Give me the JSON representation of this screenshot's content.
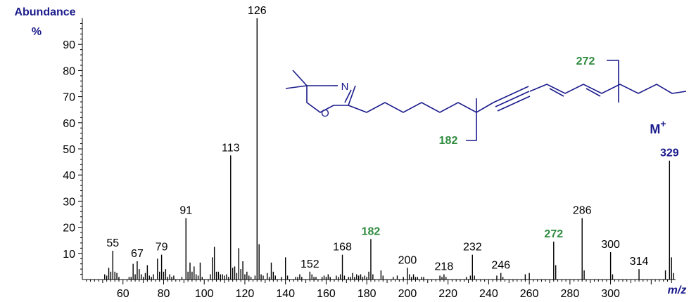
{
  "chart_data": {
    "type": "bar",
    "ylabel": "Abundance",
    "yunit": "%",
    "xlabel": "m/z",
    "xlim": [
      40,
      332
    ],
    "ylim": [
      0,
      100
    ],
    "x_ticks": [
      60,
      80,
      100,
      120,
      140,
      160,
      180,
      200,
      220,
      240,
      260,
      280,
      300
    ],
    "y_ticks": [
      10,
      20,
      30,
      40,
      50,
      60,
      70,
      80,
      90
    ],
    "peaks": [
      {
        "x": 51,
        "y": 2
      },
      {
        "x": 52,
        "y": 1.5
      },
      {
        "x": 53,
        "y": 4.5
      },
      {
        "x": 54,
        "y": 3
      },
      {
        "x": 55,
        "y": 11
      },
      {
        "x": 56,
        "y": 3
      },
      {
        "x": 57,
        "y": 2.5
      },
      {
        "x": 58,
        "y": 1
      },
      {
        "x": 63,
        "y": 1
      },
      {
        "x": 64,
        "y": 1
      },
      {
        "x": 65,
        "y": 6
      },
      {
        "x": 66,
        "y": 2
      },
      {
        "x": 67,
        "y": 7
      },
      {
        "x": 68,
        "y": 4
      },
      {
        "x": 69,
        "y": 2
      },
      {
        "x": 70,
        "y": 1
      },
      {
        "x": 71,
        "y": 2.5
      },
      {
        "x": 72,
        "y": 5.5
      },
      {
        "x": 73,
        "y": 1.5
      },
      {
        "x": 74,
        "y": 1
      },
      {
        "x": 75,
        "y": 2
      },
      {
        "x": 77,
        "y": 8
      },
      {
        "x": 78,
        "y": 3
      },
      {
        "x": 79,
        "y": 9.5
      },
      {
        "x": 80,
        "y": 3
      },
      {
        "x": 81,
        "y": 4
      },
      {
        "x": 82,
        "y": 1
      },
      {
        "x": 83,
        "y": 2
      },
      {
        "x": 84,
        "y": 1
      },
      {
        "x": 85,
        "y": 1.5
      },
      {
        "x": 89,
        "y": 1
      },
      {
        "x": 91,
        "y": 23.5
      },
      {
        "x": 92,
        "y": 3
      },
      {
        "x": 93,
        "y": 6.5
      },
      {
        "x": 94,
        "y": 3
      },
      {
        "x": 95,
        "y": 5
      },
      {
        "x": 96,
        "y": 2
      },
      {
        "x": 97,
        "y": 1.5
      },
      {
        "x": 98,
        "y": 6.5
      },
      {
        "x": 99,
        "y": 1
      },
      {
        "x": 103,
        "y": 2
      },
      {
        "x": 104,
        "y": 8.5
      },
      {
        "x": 105,
        "y": 12.5
      },
      {
        "x": 106,
        "y": 3
      },
      {
        "x": 107,
        "y": 3
      },
      {
        "x": 108,
        "y": 2
      },
      {
        "x": 109,
        "y": 2
      },
      {
        "x": 110,
        "y": 1.5
      },
      {
        "x": 111,
        "y": 2
      },
      {
        "x": 112,
        "y": 1
      },
      {
        "x": 113,
        "y": 47.5
      },
      {
        "x": 114,
        "y": 4.5
      },
      {
        "x": 115,
        "y": 5
      },
      {
        "x": 116,
        "y": 2.5
      },
      {
        "x": 117,
        "y": 12
      },
      {
        "x": 118,
        "y": 4
      },
      {
        "x": 119,
        "y": 7
      },
      {
        "x": 120,
        "y": 2
      },
      {
        "x": 121,
        "y": 3
      },
      {
        "x": 122,
        "y": 1.5
      },
      {
        "x": 123,
        "y": 1
      },
      {
        "x": 125,
        "y": 1.5
      },
      {
        "x": 126,
        "y": 100
      },
      {
        "x": 127,
        "y": 13.5
      },
      {
        "x": 128,
        "y": 2
      },
      {
        "x": 129,
        "y": 1.5
      },
      {
        "x": 131,
        "y": 2.5
      },
      {
        "x": 132,
        "y": 1
      },
      {
        "x": 133,
        "y": 6.5
      },
      {
        "x": 134,
        "y": 3
      },
      {
        "x": 135,
        "y": 1.5
      },
      {
        "x": 138,
        "y": 1
      },
      {
        "x": 140,
        "y": 8.5
      },
      {
        "x": 141,
        "y": 1.5
      },
      {
        "x": 145,
        "y": 1
      },
      {
        "x": 146,
        "y": 1
      },
      {
        "x": 147,
        "y": 2
      },
      {
        "x": 148,
        "y": 1
      },
      {
        "x": 152,
        "y": 3
      },
      {
        "x": 153,
        "y": 2
      },
      {
        "x": 154,
        "y": 1
      },
      {
        "x": 155,
        "y": 1
      },
      {
        "x": 158,
        "y": 1
      },
      {
        "x": 159,
        "y": 1.5
      },
      {
        "x": 160,
        "y": 1
      },
      {
        "x": 161,
        "y": 2
      },
      {
        "x": 162,
        "y": 1
      },
      {
        "x": 165,
        "y": 1.5
      },
      {
        "x": 166,
        "y": 1
      },
      {
        "x": 167,
        "y": 2
      },
      {
        "x": 168,
        "y": 9.5
      },
      {
        "x": 169,
        "y": 1.5
      },
      {
        "x": 171,
        "y": 1
      },
      {
        "x": 172,
        "y": 1
      },
      {
        "x": 173,
        "y": 2.5
      },
      {
        "x": 174,
        "y": 1
      },
      {
        "x": 175,
        "y": 2
      },
      {
        "x": 176,
        "y": 1.5
      },
      {
        "x": 177,
        "y": 2
      },
      {
        "x": 178,
        "y": 1
      },
      {
        "x": 179,
        "y": 1.5
      },
      {
        "x": 180,
        "y": 1
      },
      {
        "x": 181,
        "y": 3
      },
      {
        "x": 182,
        "y": 15.5
      },
      {
        "x": 183,
        "y": 2
      },
      {
        "x": 187,
        "y": 3.5
      },
      {
        "x": 188,
        "y": 1.5
      },
      {
        "x": 193,
        "y": 1
      },
      {
        "x": 195,
        "y": 1.5
      },
      {
        "x": 198,
        "y": 1
      },
      {
        "x": 200,
        "y": 4.5
      },
      {
        "x": 201,
        "y": 2
      },
      {
        "x": 202,
        "y": 1
      },
      {
        "x": 203,
        "y": 2
      },
      {
        "x": 204,
        "y": 1
      },
      {
        "x": 205,
        "y": 1
      },
      {
        "x": 207,
        "y": 1
      },
      {
        "x": 208,
        "y": 1
      },
      {
        "x": 216,
        "y": 1.5
      },
      {
        "x": 217,
        "y": 1
      },
      {
        "x": 218,
        "y": 2
      },
      {
        "x": 219,
        "y": 1
      },
      {
        "x": 229,
        "y": 1
      },
      {
        "x": 231,
        "y": 1.5
      },
      {
        "x": 232,
        "y": 9.5
      },
      {
        "x": 233,
        "y": 1.5
      },
      {
        "x": 244,
        "y": 1.5
      },
      {
        "x": 246,
        "y": 2.5
      },
      {
        "x": 247,
        "y": 1
      },
      {
        "x": 258,
        "y": 2
      },
      {
        "x": 260,
        "y": 2.5
      },
      {
        "x": 272,
        "y": 14.5
      },
      {
        "x": 273,
        "y": 5.5
      },
      {
        "x": 286,
        "y": 23.5
      },
      {
        "x": 287,
        "y": 3.5
      },
      {
        "x": 300,
        "y": 10.5
      },
      {
        "x": 301,
        "y": 2
      },
      {
        "x": 314,
        "y": 4
      },
      {
        "x": 327,
        "y": 3.5
      },
      {
        "x": 329,
        "y": 45.5
      },
      {
        "x": 330,
        "y": 8.5
      },
      {
        "x": 331,
        "y": 2.5
      }
    ],
    "peak_labels": [
      {
        "x": 55,
        "text": "55",
        "color": "#000000"
      },
      {
        "x": 67,
        "text": "67",
        "color": "#000000"
      },
      {
        "x": 79,
        "text": "79",
        "color": "#000000"
      },
      {
        "x": 91,
        "text": "91",
        "color": "#000000"
      },
      {
        "x": 113,
        "text": "113",
        "color": "#000000"
      },
      {
        "x": 126,
        "text": "126",
        "color": "#000000"
      },
      {
        "x": 152,
        "text": "152",
        "color": "#000000"
      },
      {
        "x": 168,
        "text": "168",
        "color": "#000000"
      },
      {
        "x": 182,
        "text": "182",
        "color": "#2e8b3e"
      },
      {
        "x": 200,
        "text": "200",
        "color": "#000000"
      },
      {
        "x": 218,
        "text": "218",
        "color": "#000000"
      },
      {
        "x": 232,
        "text": "232",
        "color": "#000000"
      },
      {
        "x": 246,
        "text": "246",
        "color": "#000000"
      },
      {
        "x": 272,
        "text": "272",
        "color": "#2e8b3e"
      },
      {
        "x": 286,
        "text": "286",
        "color": "#000000"
      },
      {
        "x": 300,
        "text": "300",
        "color": "#000000"
      },
      {
        "x": 314,
        "text": "314",
        "color": "#000000"
      },
      {
        "x": 329,
        "text": "329",
        "color": "#1a1a8c"
      }
    ],
    "molecular_ion": {
      "label": "M",
      "superscript": "+"
    },
    "structure": {
      "atom_N": "N",
      "atom_O": "O",
      "fragment_left": "182",
      "fragment_right": "272"
    },
    "colors": {
      "structure": "#1a1a8c",
      "fragment": "#2e8b3e",
      "axis_text": "#1a1a8c"
    }
  }
}
